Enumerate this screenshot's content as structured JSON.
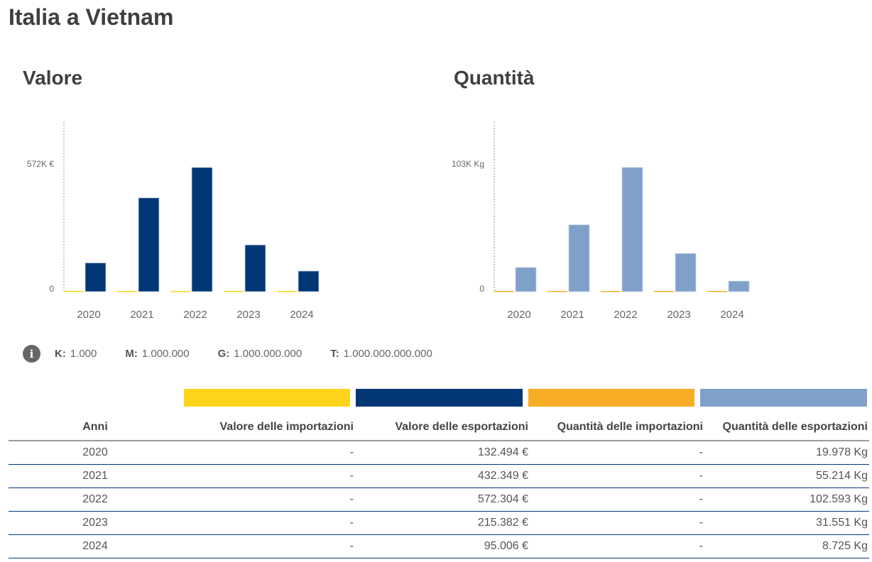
{
  "page": {
    "title": "Italia a Vietnam"
  },
  "colors": {
    "import_value": "#FFD51B",
    "export_value": "#003774",
    "import_quantity": "#F7AE26",
    "export_quantity": "#7FA0C9"
  },
  "legend_units": {
    "icon": "info-icon",
    "items": [
      {
        "key": "K:",
        "value": "1.000"
      },
      {
        "key": "M:",
        "value": "1.000.000"
      },
      {
        "key": "G:",
        "value": "1.000.000.000"
      },
      {
        "key": "T:",
        "value": "1.000.000.000.000"
      }
    ]
  },
  "chart_data": [
    {
      "type": "bar",
      "title": "Valore",
      "categories": [
        "2020",
        "2021",
        "2022",
        "2023",
        "2024"
      ],
      "series": [
        {
          "name": "Valore delle importazioni",
          "color": "#FFD51B",
          "values": [
            0,
            0,
            0,
            0,
            0
          ]
        },
        {
          "name": "Valore delle esportazioni",
          "color": "#003774",
          "values": [
            132494,
            432349,
            572304,
            215382,
            95006
          ]
        }
      ],
      "y_ticks": [
        {
          "value": 0,
          "label": "0"
        },
        {
          "value": 572304,
          "label": "572K €"
        }
      ],
      "ylim": [
        0,
        572304
      ],
      "xlabel": "",
      "ylabel": "",
      "grid": false
    },
    {
      "type": "bar",
      "title": "Quantità",
      "categories": [
        "2020",
        "2021",
        "2022",
        "2023",
        "2024"
      ],
      "series": [
        {
          "name": "Quantità delle importazioni",
          "color": "#F7AE26",
          "values": [
            0,
            0,
            0,
            0,
            0
          ]
        },
        {
          "name": "Quantità delle esportazioni",
          "color": "#7FA0C9",
          "values": [
            19978,
            55214,
            102593,
            31551,
            8725
          ]
        }
      ],
      "y_ticks": [
        {
          "value": 0,
          "label": "0"
        },
        {
          "value": 102593,
          "label": "103K Kg"
        }
      ],
      "ylim": [
        0,
        102593
      ],
      "xlabel": "",
      "ylabel": "",
      "grid": false
    }
  ],
  "table": {
    "headers": [
      "Anni",
      "Valore delle importazioni",
      "Valore delle esportazioni",
      "Quantità delle importazioni",
      "Quantità delle esportazioni"
    ],
    "rows": [
      [
        "2020",
        "-",
        "132.494 €",
        "-",
        "19.978 Kg"
      ],
      [
        "2021",
        "-",
        "432.349 €",
        "-",
        "55.214 Kg"
      ],
      [
        "2022",
        "-",
        "572.304 €",
        "-",
        "102.593 Kg"
      ],
      [
        "2023",
        "-",
        "215.382 €",
        "-",
        "31.551 Kg"
      ],
      [
        "2024",
        "-",
        "95.006 €",
        "-",
        "8.725 Kg"
      ]
    ]
  }
}
